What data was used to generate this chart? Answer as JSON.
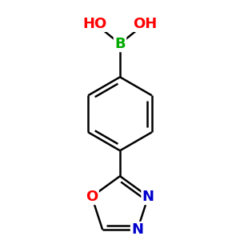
{
  "background_color": "#ffffff",
  "bond_color": "#000000",
  "bond_width": 1.8,
  "atom_colors": {
    "B": "#00aa00",
    "O": "#ff0000",
    "N": "#0000cc",
    "C": "#000000"
  },
  "font_size_atoms": 13,
  "figsize": [
    3.0,
    3.0
  ],
  "dpi": 100,
  "xlim": [
    -1.3,
    1.3
  ],
  "ylim": [
    -2.1,
    1.9
  ]
}
